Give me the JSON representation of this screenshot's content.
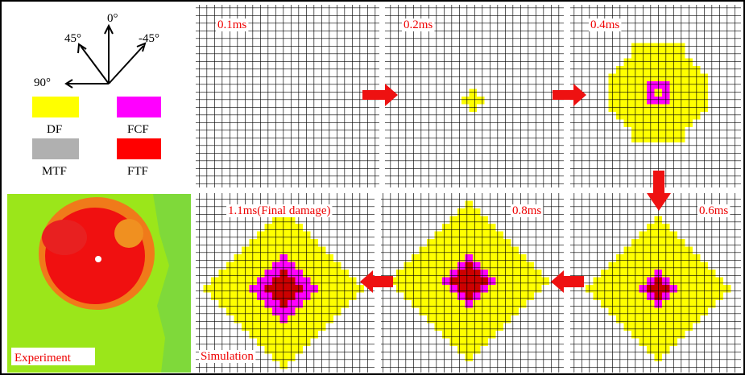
{
  "compass": {
    "labels": [
      "0°",
      "45°",
      "-45°",
      "90°"
    ]
  },
  "legend": {
    "items": [
      "DF",
      "FCF",
      "MTF",
      "FTF"
    ]
  },
  "panels": [
    "0.1ms",
    "0.2ms",
    "0.4ms",
    "1.1ms(Final damage)",
    "0.8ms",
    "0.6ms"
  ],
  "experiment_label": "Experiment",
  "simulation_label": "Simulation"
}
